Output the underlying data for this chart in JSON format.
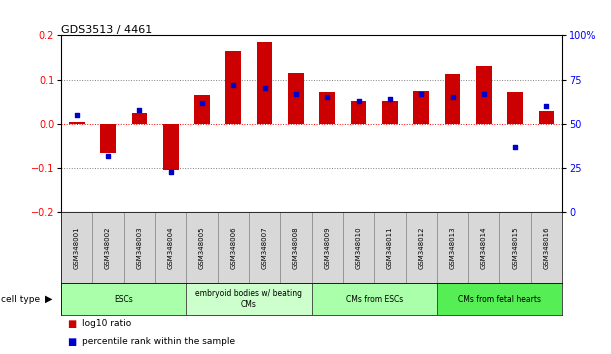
{
  "title": "GDS3513 / 4461",
  "samples": [
    "GSM348001",
    "GSM348002",
    "GSM348003",
    "GSM348004",
    "GSM348005",
    "GSM348006",
    "GSM348007",
    "GSM348008",
    "GSM348009",
    "GSM348010",
    "GSM348011",
    "GSM348012",
    "GSM348013",
    "GSM348014",
    "GSM348015",
    "GSM348016"
  ],
  "log10_ratio": [
    0.005,
    -0.065,
    0.025,
    -0.105,
    0.065,
    0.165,
    0.185,
    0.115,
    0.072,
    0.052,
    0.052,
    0.075,
    0.113,
    0.13,
    0.072,
    0.03
  ],
  "percentile_rank": [
    55,
    32,
    58,
    23,
    62,
    72,
    70,
    67,
    65,
    63,
    64,
    67,
    65,
    67,
    37,
    60
  ],
  "cell_type_groups": [
    {
      "label": "ESCs",
      "start": 0,
      "end": 3,
      "color": "#aaffaa"
    },
    {
      "label": "embryoid bodies w/ beating\nCMs",
      "start": 4,
      "end": 7,
      "color": "#ccffcc"
    },
    {
      "label": "CMs from ESCs",
      "start": 8,
      "end": 11,
      "color": "#aaffaa"
    },
    {
      "label": "CMs from fetal hearts",
      "start": 12,
      "end": 15,
      "color": "#55ee55"
    }
  ],
  "bar_color_red": "#cc0000",
  "bar_color_blue": "#0000cc",
  "ylim_left": [
    -0.2,
    0.2
  ],
  "ylim_right": [
    0,
    100
  ],
  "yticks_left": [
    -0.2,
    -0.1,
    0.0,
    0.1,
    0.2
  ],
  "yticks_right": [
    0,
    25,
    50,
    75,
    100
  ],
  "ytick_labels_right": [
    "0",
    "25",
    "50",
    "75",
    "100%"
  ],
  "hlines": [
    0.1,
    0.0,
    -0.1
  ],
  "legend_items": [
    {
      "label": "log10 ratio",
      "color": "#cc0000"
    },
    {
      "label": "percentile rank within the sample",
      "color": "#0000cc"
    }
  ],
  "fig_width": 6.11,
  "fig_height": 3.54,
  "dpi": 100
}
